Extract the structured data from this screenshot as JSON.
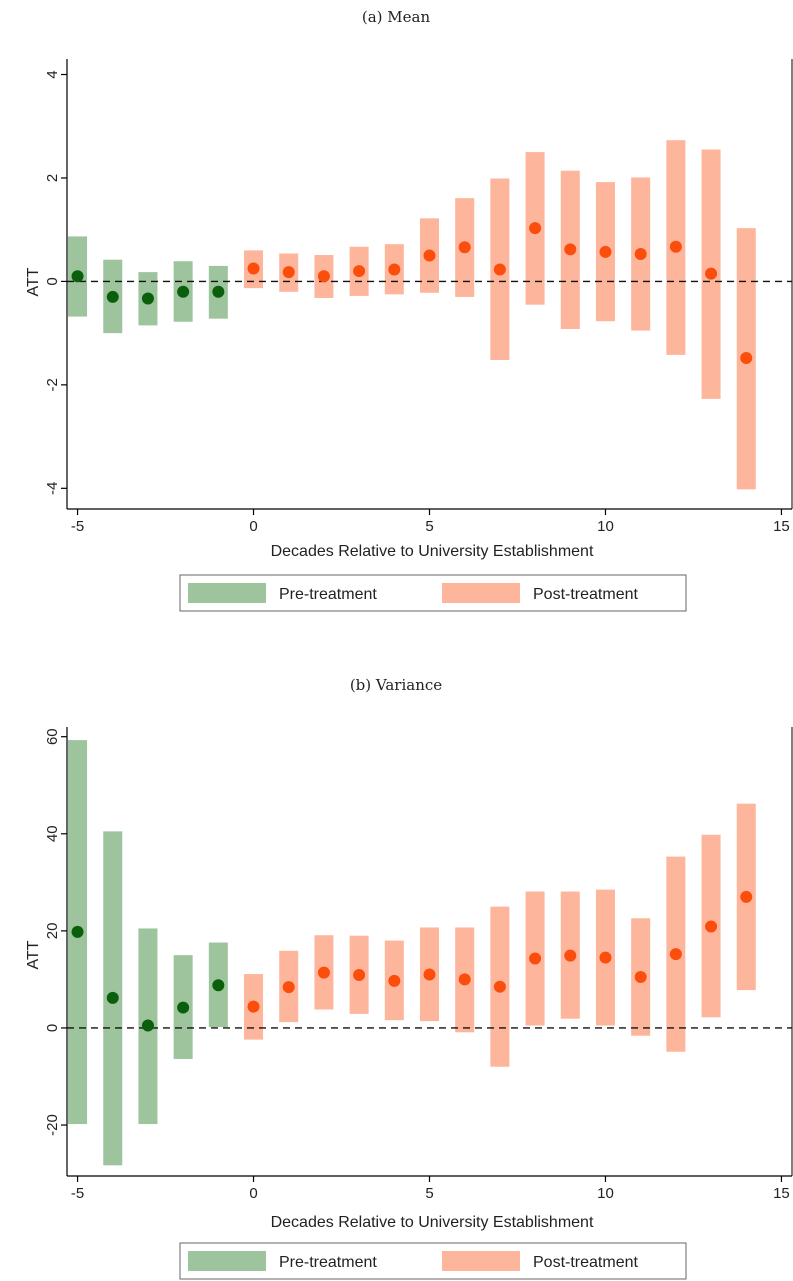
{
  "captions": [
    "(a) Mean",
    "(b) Variance"
  ],
  "colors": {
    "pre_bar": "#9dc49d",
    "pre_point": "#0b5e0b",
    "post_bar": "#fdb59c",
    "post_point": "#fb4d0c"
  },
  "chart_data": [
    {
      "type": "errorbar",
      "title": "(a) Mean",
      "xlabel": "Decades Relative to University Establishment",
      "ylabel": "ATT",
      "xlim": [
        -5.3,
        15.3
      ],
      "ylim": [
        -4.4,
        4.3
      ],
      "xticks": [
        -5,
        0,
        5,
        10,
        15
      ],
      "yticks": [
        4,
        2,
        0,
        -2,
        -4
      ],
      "reference_line": 0,
      "legend": [
        "Pre-treatment",
        "Post-treatment"
      ],
      "series": [
        {
          "name": "Pre-treatment",
          "x": [
            -5,
            -4,
            -3,
            -2,
            -1
          ],
          "estimate": [
            0.1,
            -0.3,
            -0.33,
            -0.2,
            -0.2
          ],
          "lower": [
            -0.68,
            -1.0,
            -0.85,
            -0.78,
            -0.72
          ],
          "upper": [
            0.87,
            0.42,
            0.18,
            0.39,
            0.3
          ]
        },
        {
          "name": "Post-treatment",
          "x": [
            0,
            1,
            2,
            3,
            4,
            5,
            6,
            7,
            8,
            9,
            10,
            11,
            12,
            13,
            14
          ],
          "estimate": [
            0.25,
            0.18,
            0.1,
            0.2,
            0.23,
            0.5,
            0.66,
            0.23,
            1.03,
            0.62,
            0.57,
            0.53,
            0.67,
            0.15,
            -1.48
          ],
          "lower": [
            -0.13,
            -0.2,
            -0.32,
            -0.28,
            -0.25,
            -0.22,
            -0.3,
            -1.52,
            -0.45,
            -0.92,
            -0.77,
            -0.95,
            -1.42,
            -2.27,
            -4.02
          ],
          "upper": [
            0.6,
            0.54,
            0.51,
            0.67,
            0.72,
            1.22,
            1.61,
            1.99,
            2.5,
            2.14,
            1.92,
            2.01,
            2.73,
            2.55,
            1.03
          ]
        }
      ]
    },
    {
      "type": "errorbar",
      "title": "(b) Variance",
      "xlabel": "Decades Relative to University Establishment",
      "ylabel": "ATT",
      "xlim": [
        -5.3,
        15.3
      ],
      "ylim": [
        -30.5,
        62
      ],
      "xticks": [
        -5,
        0,
        5,
        10,
        15
      ],
      "yticks": [
        60,
        40,
        20,
        0,
        -20
      ],
      "reference_line": 0,
      "legend": [
        "Pre-treatment",
        "Post-treatment"
      ],
      "series": [
        {
          "name": "Pre-treatment",
          "x": [
            -5,
            -4,
            -3,
            -2,
            -1
          ],
          "estimate": [
            19.8,
            6.2,
            0.5,
            4.2,
            8.8
          ],
          "lower": [
            -19.8,
            -28.3,
            -19.8,
            -6.4,
            0.2
          ],
          "upper": [
            59.3,
            40.5,
            20.5,
            15.0,
            17.6
          ]
        },
        {
          "name": "Post-treatment",
          "x": [
            0,
            1,
            2,
            3,
            4,
            5,
            6,
            7,
            8,
            9,
            10,
            11,
            12,
            13,
            14
          ],
          "estimate": [
            4.4,
            8.4,
            11.4,
            10.9,
            9.7,
            11.0,
            10.0,
            8.5,
            14.3,
            14.9,
            14.5,
            10.5,
            15.2,
            20.9,
            27.0
          ],
          "lower": [
            -2.4,
            1.2,
            3.8,
            2.9,
            1.6,
            1.4,
            -0.9,
            -8.0,
            0.5,
            1.9,
            0.5,
            -1.6,
            -4.9,
            2.2,
            7.8
          ],
          "upper": [
            11.1,
            15.9,
            19.1,
            19.0,
            18.0,
            20.7,
            20.7,
            25.0,
            28.1,
            28.1,
            28.5,
            22.6,
            35.3,
            39.8,
            46.2
          ]
        }
      ]
    }
  ]
}
